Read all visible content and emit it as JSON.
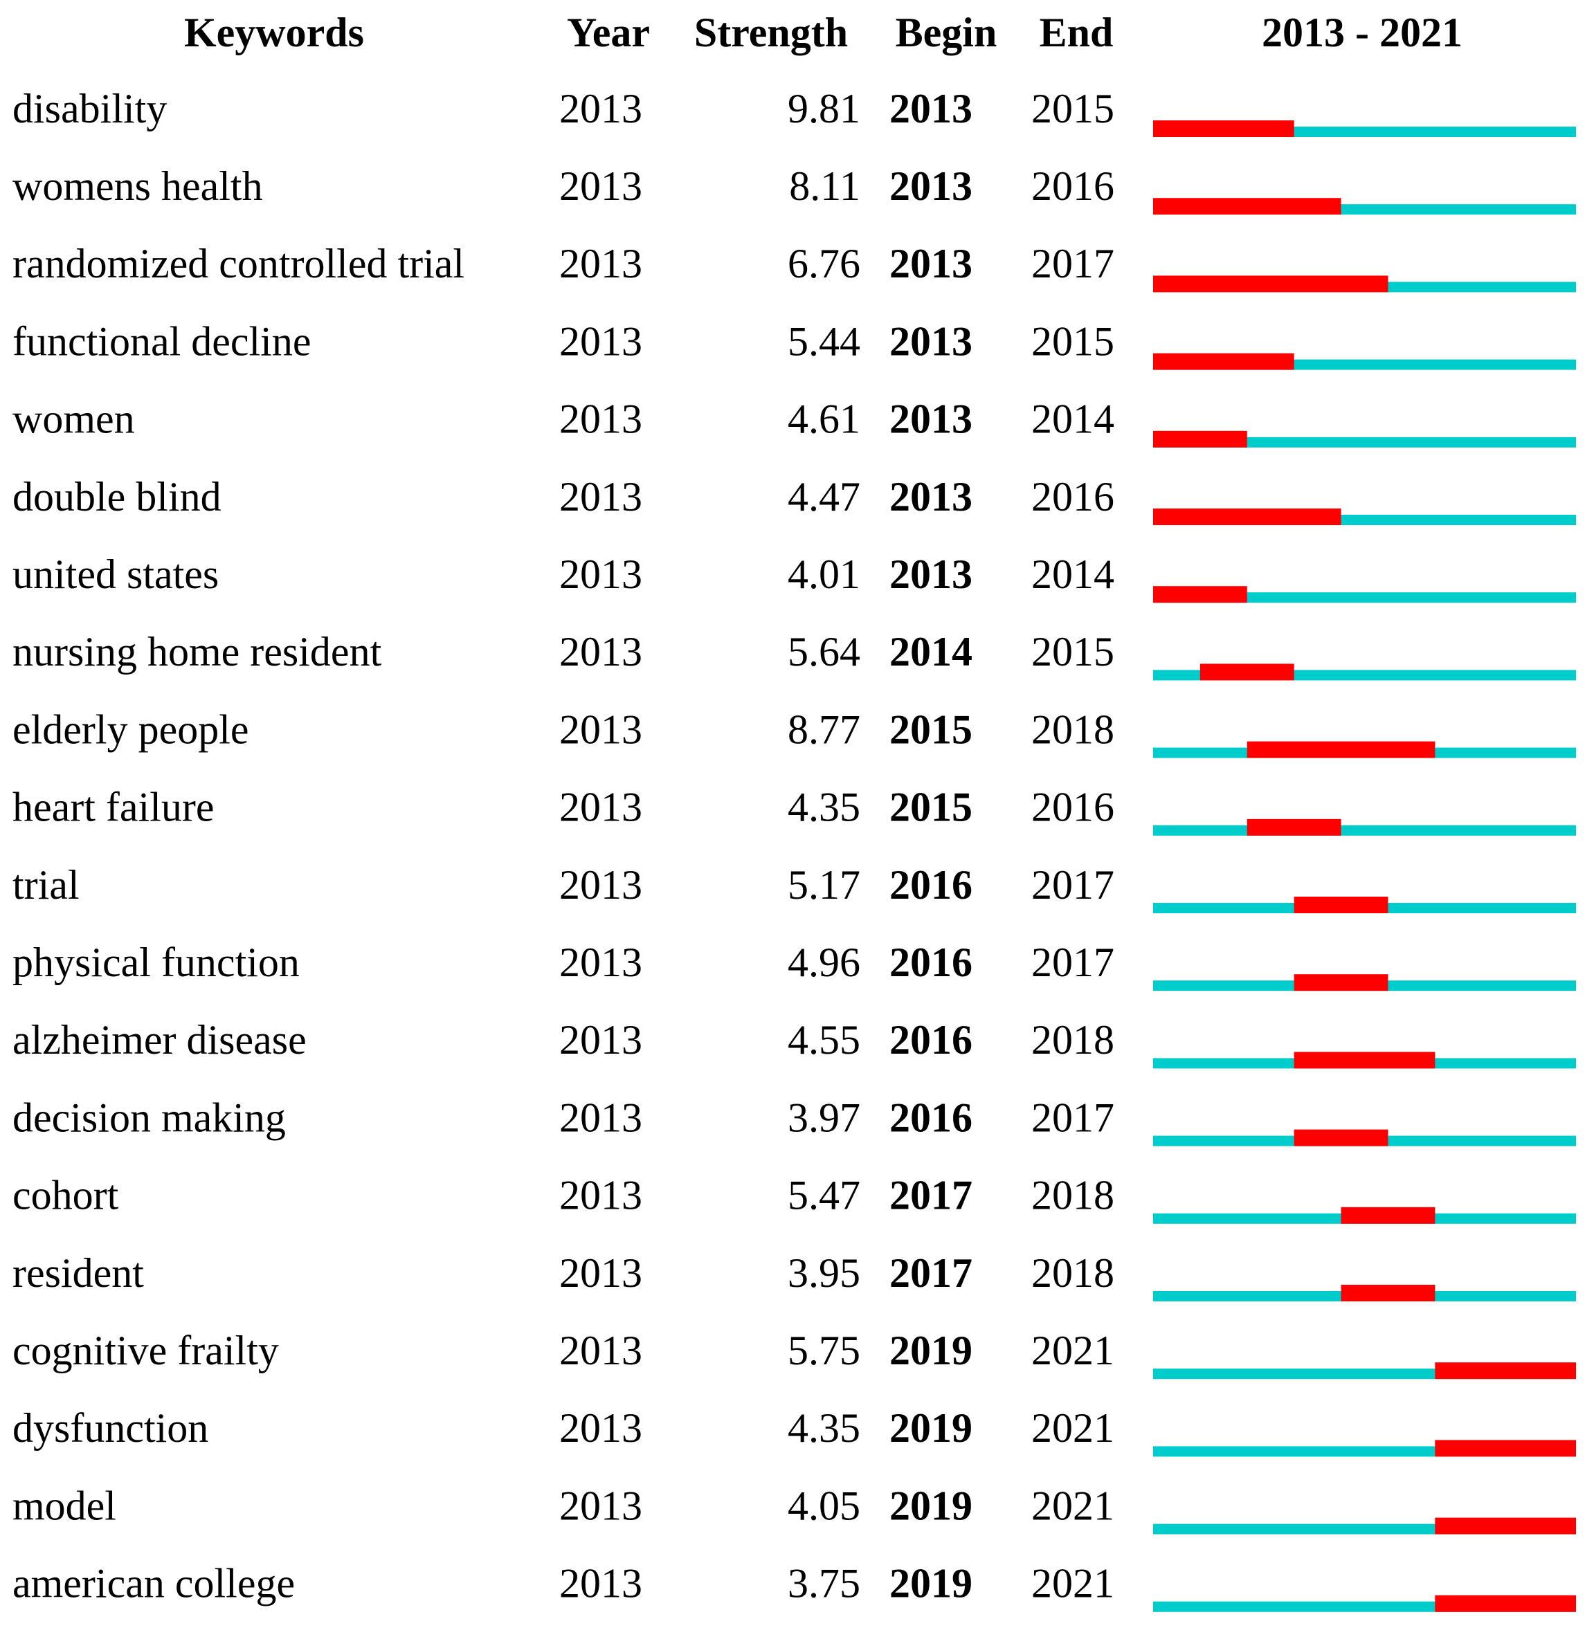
{
  "table": {
    "header": [
      "Keywords",
      "Year",
      "Strength",
      "Begin",
      "End",
      "2013 - 2021"
    ],
    "rows": [
      [
        "disability",
        2013,
        9.81,
        2013,
        2015
      ],
      [
        "womens health",
        2013,
        8.11,
        2013,
        2016
      ],
      [
        "randomized controlled trial",
        2013,
        6.76,
        2013,
        2017
      ],
      [
        "functional decline",
        2013,
        5.44,
        2013,
        2015
      ],
      [
        "women",
        2013,
        4.61,
        2013,
        2014
      ],
      [
        "double blind",
        2013,
        4.47,
        2013,
        2016
      ],
      [
        "united states",
        2013,
        4.01,
        2013,
        2014
      ],
      [
        "nursing home resident",
        2013,
        5.64,
        2014,
        2015
      ],
      [
        "elderly people",
        2013,
        8.77,
        2015,
        2018
      ],
      [
        "heart failure",
        2013,
        4.35,
        2015,
        2016
      ],
      [
        "trial",
        2013,
        5.17,
        2016,
        2017
      ],
      [
        "physical function",
        2013,
        4.96,
        2016,
        2017
      ],
      [
        "alzheimer disease",
        2013,
        4.55,
        2016,
        2018
      ],
      [
        "decision making",
        2013,
        3.97,
        2016,
        2017
      ],
      [
        "cohort",
        2013,
        5.47,
        2017,
        2018
      ],
      [
        "resident",
        2013,
        3.95,
        2017,
        2018
      ],
      [
        "cognitive frailty",
        2013,
        5.75,
        2019,
        2021
      ],
      [
        "dysfunction",
        2013,
        4.35,
        2019,
        2021
      ],
      [
        "model",
        2013,
        4.05,
        2019,
        2021
      ],
      [
        "american college",
        2013,
        3.75,
        2019,
        2021
      ]
    ]
  }
}
